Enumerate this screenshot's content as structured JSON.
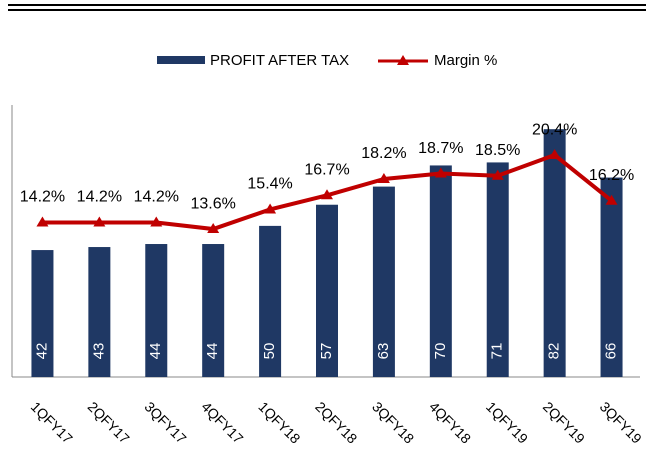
{
  "chart_data": {
    "type": "bar",
    "categories": [
      "1QFY17",
      "2QFY17",
      "3QFY17",
      "4QFY17",
      "1QFY18",
      "2QFY18",
      "3QFY18",
      "4QFY18",
      "1QFY19",
      "2QFY19",
      "3QFY19"
    ],
    "series": [
      {
        "name": "PROFIT AFTER TAX",
        "color": "#1f3864",
        "type": "bar",
        "values": [
          42,
          43,
          44,
          44,
          50,
          57,
          63,
          70,
          71,
          82,
          66
        ]
      },
      {
        "name": "Margin %",
        "color": "#c00000",
        "type": "line",
        "axis": "y2",
        "values": [
          14.2,
          14.2,
          14.2,
          13.6,
          15.4,
          16.7,
          18.2,
          18.7,
          18.5,
          20.4,
          16.2
        ],
        "value_labels": [
          "14.2%",
          "14.2%",
          "14.2%",
          "13.6%",
          "15.4%",
          "16.7%",
          "18.2%",
          "18.7%",
          "18.5%",
          "20.4%",
          "16.2%"
        ]
      }
    ],
    "ylim": [
      0,
      90
    ],
    "y2lim": [
      0,
      25
    ],
    "legend": "top"
  }
}
